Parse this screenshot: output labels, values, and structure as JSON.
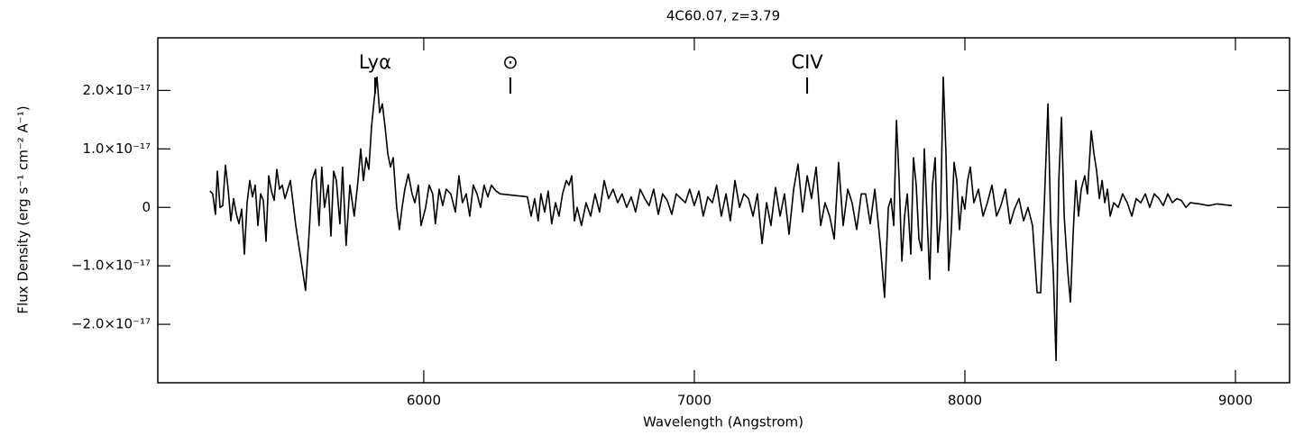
{
  "chart_data": {
    "type": "line",
    "title": "4C60.07, z=3.79",
    "xlabel": "Wavelength (Angstrom)",
    "ylabel": "Flux Density (erg s⁻¹ cm⁻² A⁻¹)",
    "color": "#000000",
    "xlim": [
      5017,
      9200
    ],
    "xticks": [
      6000,
      7000,
      8000,
      9000
    ],
    "ylim": [
      -3e-17,
      2.9e-17
    ],
    "yticks": [
      {
        "value": -2e-17,
        "label": "−2.0×10⁻¹⁷"
      },
      {
        "value": -1e-17,
        "label": "−1.0×10⁻¹⁷"
      },
      0,
      {
        "value": 1e-17,
        "label": "1.0×10⁻¹⁷"
      },
      {
        "value": 2e-17,
        "label": "2.0×10⁻¹⁷"
      }
    ],
    "annotations": [
      {
        "text": "Lyα",
        "x": 5820
      },
      {
        "text": "⊙",
        "x": 6320
      },
      {
        "text": "CIV",
        "x": 7417
      }
    ],
    "x": [
      5210,
      5220,
      5230,
      5237,
      5247,
      5257,
      5267,
      5277,
      5287,
      5297,
      5307,
      5317,
      5327,
      5337,
      5347,
      5357,
      5367,
      5377,
      5387,
      5397,
      5407,
      5417,
      5427,
      5437,
      5447,
      5457,
      5467,
      5477,
      5487,
      5507,
      5527,
      5547,
      5563,
      5577,
      5587,
      5600,
      5613,
      5623,
      5633,
      5647,
      5657,
      5667,
      5677,
      5690,
      5700,
      5713,
      5727,
      5743,
      5757,
      5767,
      5777,
      5787,
      5797,
      5807,
      5817,
      5827,
      5837,
      5847,
      5857,
      5867,
      5877,
      5887,
      5900,
      5910,
      5920,
      5930,
      5943,
      5957,
      5967,
      5980,
      5990,
      6007,
      6020,
      6033,
      6043,
      6057,
      6070,
      6083,
      6100,
      6117,
      6130,
      6143,
      6157,
      6170,
      6183,
      6197,
      6210,
      6223,
      6237,
      6250,
      6267,
      6283,
      6383,
      6397,
      6410,
      6423,
      6433,
      6447,
      6460,
      6473,
      6487,
      6500,
      6513,
      6527,
      6537,
      6547,
      6557,
      6567,
      6583,
      6600,
      6617,
      6633,
      6650,
      6667,
      6683,
      6700,
      6717,
      6733,
      6750,
      6767,
      6783,
      6800,
      6817,
      6833,
      6850,
      6867,
      6883,
      6900,
      6917,
      6933,
      6967,
      6983,
      7000,
      7017,
      7033,
      7050,
      7067,
      7083,
      7100,
      7117,
      7133,
      7150,
      7167,
      7183,
      7200,
      7217,
      7233,
      7250,
      7267,
      7283,
      7300,
      7317,
      7333,
      7350,
      7367,
      7383,
      7400,
      7417,
      7433,
      7450,
      7467,
      7483,
      7500,
      7517,
      7533,
      7550,
      7567,
      7583,
      7600,
      7617,
      7633,
      7650,
      7667,
      7687,
      7703,
      7717,
      7727,
      7737,
      7747,
      7757,
      7767,
      7777,
      7787,
      7800,
      7810,
      7820,
      7830,
      7840,
      7850,
      7860,
      7870,
      7880,
      7890,
      7900,
      7910,
      7920,
      7930,
      7940,
      7950,
      7960,
      7970,
      7980,
      7990,
      8000,
      8010,
      8020,
      8033,
      8050,
      8067,
      8083,
      8100,
      8117,
      8133,
      8150,
      8167,
      8183,
      8200,
      8217,
      8233,
      8250,
      8267,
      8280,
      8293,
      8307,
      8317,
      8327,
      8337,
      8347,
      8357,
      8367,
      8380,
      8390,
      8400,
      8410,
      8420,
      8430,
      8443,
      8453,
      8467,
      8477,
      8487,
      8497,
      8507,
      8517,
      8527,
      8537,
      8550,
      8567,
      8583,
      8600,
      8617,
      8633,
      8650,
      8667,
      8683,
      8700,
      8717,
      8733,
      8750,
      8767,
      8783,
      8800,
      8817,
      8833,
      8867,
      8900,
      8933,
      8987
    ],
    "values": [
      2.8e-18,
      2.3e-18,
      -1.2e-18,
      6.2e-18,
      0,
      3e-19,
      7.2e-18,
      3.1e-18,
      -2.3e-18,
      1.5e-18,
      -1.1e-18,
      -2.8e-18,
      -3e-19,
      -8e-18,
      8e-19,
      4.6e-18,
      1.8e-18,
      3.8e-18,
      -3.1e-18,
      2.3e-18,
      1.2e-18,
      -5.8e-18,
      5.4e-18,
      2.8e-18,
      1.2e-18,
      6.5e-18,
      3.1e-18,
      3.8e-18,
      1.5e-18,
      4.6e-18,
      -3.1e-18,
      -9.2e-18,
      -1.42e-17,
      -3.8e-18,
      4.6e-18,
      6.5e-18,
      -3.1e-18,
      6.9e-18,
      0,
      3.8e-18,
      -4.9e-18,
      6.2e-18,
      4.6e-18,
      -2.8e-18,
      6.9e-18,
      -6.5e-18,
      3.8e-18,
      -1.5e-18,
      4.6e-18,
      1e-17,
      4.6e-18,
      8.5e-18,
      6.5e-18,
      1.38e-17,
      1.85e-17,
      2.23e-17,
      1.62e-17,
      1.77e-17,
      1.38e-17,
      9.2e-18,
      6.9e-18,
      8.5e-18,
      0,
      -3.8e-18,
      0,
      3.1e-18,
      5.7e-18,
      2.3e-18,
      8e-19,
      3.8e-18,
      -3.1e-18,
      0,
      3.8e-18,
      2.3e-18,
      -2.8e-18,
      3.1e-18,
      3e-19,
      3.1e-18,
      2.3e-18,
      -8e-19,
      5.4e-18,
      8e-19,
      2.3e-18,
      -1.5e-18,
      3.8e-18,
      2.3e-18,
      0,
      3.8e-18,
      1.8e-18,
      3.8e-18,
      2.8e-18,
      2.3e-18,
      1.8e-18,
      -1.5e-18,
      1.5e-18,
      -2.3e-18,
      2.3e-18,
      -8e-19,
      2.8e-18,
      -2.8e-18,
      8e-19,
      -1.5e-18,
      2.3e-18,
      4.6e-18,
      3.8e-18,
      5.4e-18,
      -2.3e-18,
      0,
      -3.1e-18,
      8e-19,
      -1.5e-18,
      2.3e-18,
      -8e-19,
      4.6e-18,
      1.5e-18,
      3.1e-18,
      8e-19,
      2.3e-18,
      0,
      1.8e-18,
      -8e-19,
      3.1e-18,
      1.5e-18,
      3e-19,
      3.1e-18,
      -1.2e-18,
      2.3e-18,
      1.2e-18,
      -1.2e-18,
      2.3e-18,
      8e-19,
      3.1e-18,
      3e-19,
      2.8e-18,
      -1.5e-18,
      1.8e-18,
      8e-19,
      3.8e-18,
      -1.5e-18,
      2.3e-18,
      -2.3e-18,
      4.6e-18,
      0,
      2.3e-18,
      1.5e-18,
      -1.5e-18,
      2.3e-18,
      -6.2e-18,
      8e-19,
      -3.1e-18,
      3.4e-18,
      -1.5e-18,
      2.3e-18,
      -4.6e-18,
      3.1e-18,
      7.4e-18,
      -8e-19,
      5.4e-18,
      1.5e-18,
      6.9e-18,
      -3.1e-18,
      8e-19,
      -1.5e-18,
      -5.4e-18,
      7.7e-18,
      -3.1e-18,
      3.1e-18,
      8e-19,
      -3.8e-18,
      2.3e-18,
      2.3e-18,
      -2.8e-18,
      3.1e-18,
      -6.2e-18,
      -1.54e-17,
      0,
      1.5e-18,
      -3.1e-18,
      1.49e-17,
      4.6e-18,
      -9.2e-18,
      -1.5e-18,
      2.3e-18,
      -8e-18,
      8.5e-18,
      3.8e-18,
      -5.4e-18,
      -7.4e-18,
      1e-17,
      -1.5e-18,
      -1.23e-17,
      3.8e-18,
      8.5e-18,
      -7.7e-18,
      -1.5e-18,
      2.23e-17,
      9.2e-18,
      -1.08e-17,
      -3.8e-18,
      7.7e-18,
      4.6e-18,
      -3.8e-18,
      1.8e-18,
      -3e-19,
      4.6e-18,
      6.9e-18,
      8e-19,
      3.1e-18,
      -1.5e-18,
      8e-19,
      3.8e-18,
      -1.5e-18,
      3e-19,
      3.1e-18,
      -2.8e-18,
      -3e-19,
      1.5e-18,
      -2.3e-18,
      0,
      -3.1e-18,
      -1.46e-17,
      -1.46e-17,
      0,
      1.77e-17,
      -2.3e-18,
      -1.15e-17,
      -2.62e-17,
      4.6e-18,
      1.54e-17,
      -1.5e-18,
      -1.08e-17,
      -1.62e-17,
      -4.6e-18,
      4.6e-18,
      -1.5e-18,
      3.1e-18,
      5.4e-18,
      2.3e-18,
      1.31e-17,
      9.2e-18,
      6.2e-18,
      1.5e-18,
      4.6e-18,
      8e-19,
      3.1e-18,
      -1.5e-18,
      8e-19,
      0,
      2.3e-18,
      8e-19,
      -1.5e-18,
      1.5e-18,
      8e-19,
      2.3e-18,
      0,
      2.3e-18,
      1.5e-18,
      3e-19,
      2.3e-18,
      8e-19,
      1.5e-18,
      1.2e-18,
      0,
      8e-19,
      6e-19,
      3e-19,
      6e-19,
      3e-19
    ]
  }
}
